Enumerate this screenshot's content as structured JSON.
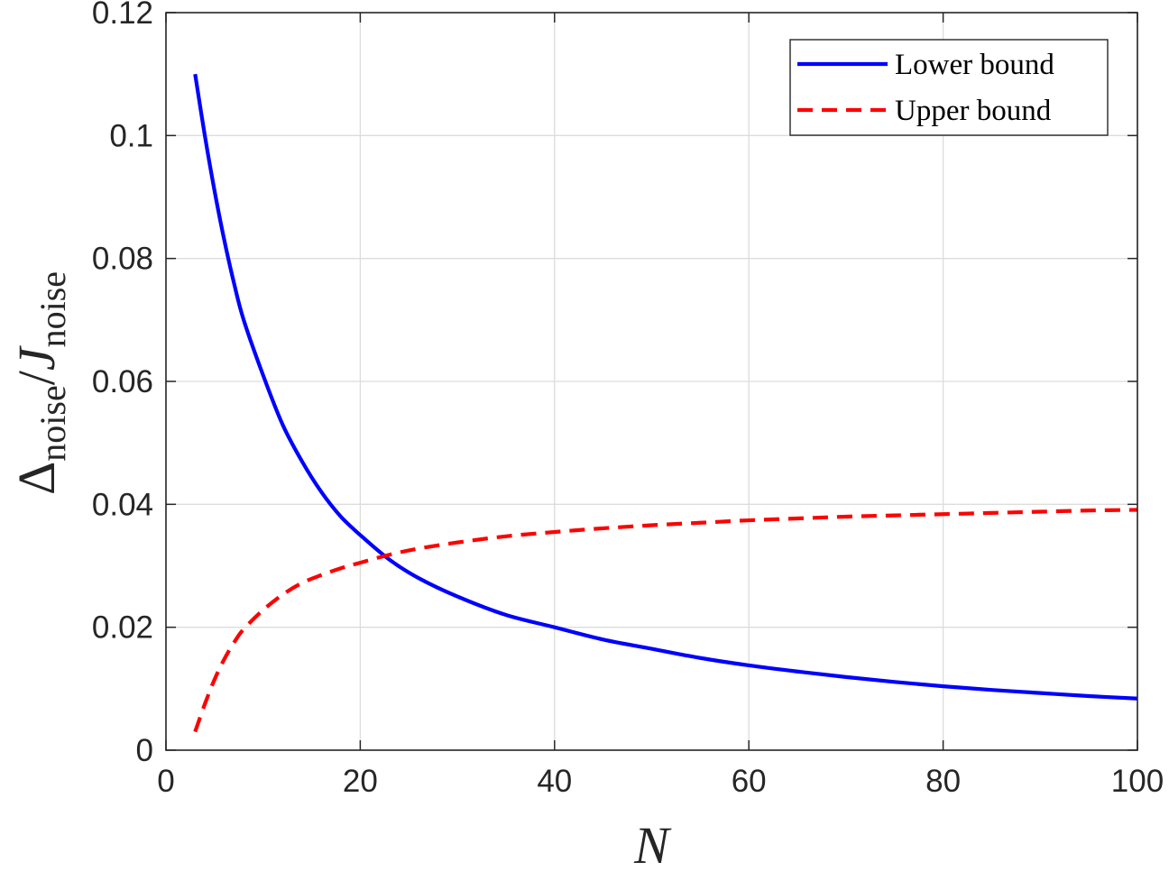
{
  "chart_data": {
    "type": "line",
    "title": "",
    "xlabel": "N",
    "ylabel": {
      "main": "Δ",
      "main_subscript": "noise",
      "separator": "/",
      "denominator": "J",
      "denominator_subscript": "noise"
    },
    "xlim": [
      0,
      100
    ],
    "ylim": [
      0,
      0.12
    ],
    "xticks": [
      "0",
      "20",
      "40",
      "60",
      "80",
      "100"
    ],
    "yticks": [
      "0",
      "0.02",
      "0.04",
      "0.06",
      "0.08",
      "0.1",
      "0.12"
    ],
    "grid": true,
    "legend_position": "top-right",
    "x": [
      3,
      4,
      5,
      6,
      7,
      8,
      10,
      12,
      14,
      16,
      18,
      20,
      23,
      26,
      30,
      35,
      40,
      45,
      50,
      55,
      60,
      65,
      70,
      75,
      80,
      85,
      90,
      95,
      100
    ],
    "series": [
      {
        "name": "Lower bound",
        "color": "#0000ff",
        "style": "solid",
        "values": [
          0.11,
          0.1,
          0.091,
          0.083,
          0.076,
          0.07,
          0.061,
          0.053,
          0.047,
          0.042,
          0.038,
          0.035,
          0.031,
          0.028,
          0.025,
          0.022,
          0.02,
          0.018,
          0.0165,
          0.015,
          0.0138,
          0.0128,
          0.0119,
          0.0111,
          0.0104,
          0.0098,
          0.0093,
          0.0088,
          0.0084
        ]
      },
      {
        "name": "Upper bound",
        "color": "#ff0000",
        "style": "dashed",
        "values": [
          0.003,
          0.0075,
          0.0115,
          0.0148,
          0.0175,
          0.0197,
          0.0228,
          0.0253,
          0.0272,
          0.0285,
          0.0296,
          0.0305,
          0.0318,
          0.0328,
          0.0338,
          0.0348,
          0.0355,
          0.0361,
          0.0366,
          0.037,
          0.0374,
          0.0377,
          0.038,
          0.0382,
          0.0384,
          0.0386,
          0.0388,
          0.039,
          0.0391
        ]
      }
    ]
  }
}
